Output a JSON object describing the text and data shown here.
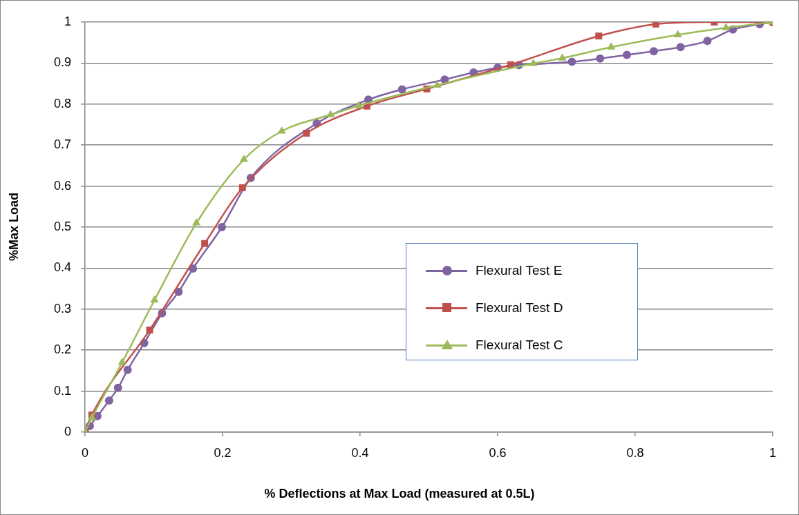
{
  "chart_data": {
    "type": "line",
    "xlabel": "% Deflections at Max Load (measured at 0.5L)",
    "ylabel": "%Max Load",
    "xlim": [
      0,
      1
    ],
    "xticks": [
      0,
      0.2,
      0.4,
      0.6,
      0.8,
      1
    ],
    "ylim": [
      0,
      1
    ],
    "yticks": [
      0,
      0.1,
      0.2,
      0.3,
      0.4,
      0.5,
      0.6,
      0.7,
      0.8,
      0.9,
      1
    ],
    "grid": "y",
    "legend": "right",
    "series": [
      {
        "name": "Flexural Test E",
        "color": "#8064a2",
        "marker": "circle",
        "x": [
          0,
          0.007,
          0.018,
          0.035,
          0.048,
          0.062,
          0.086,
          0.112,
          0.136,
          0.157,
          0.199,
          0.241,
          0.337,
          0.412,
          0.461,
          0.523,
          0.565,
          0.6,
          0.631,
          0.708,
          0.749,
          0.788,
          0.827,
          0.866,
          0.905,
          0.942,
          0.981,
          1
        ],
        "values": [
          0,
          0.015,
          0.039,
          0.077,
          0.108,
          0.152,
          0.217,
          0.29,
          0.342,
          0.399,
          0.5,
          0.62,
          0.753,
          0.811,
          0.836,
          0.86,
          0.877,
          0.889,
          0.895,
          0.903,
          0.911,
          0.92,
          0.929,
          0.939,
          0.954,
          0.982,
          0.995,
          1
        ]
      },
      {
        "name": "Flexural Test D",
        "color": "#c0504d",
        "marker": "square",
        "x": [
          0,
          0.01,
          0.094,
          0.174,
          0.229,
          0.322,
          0.41,
          0.497,
          0.619,
          0.747,
          0.83,
          0.915,
          1
        ],
        "values": [
          0,
          0.042,
          0.249,
          0.46,
          0.596,
          0.729,
          0.795,
          0.837,
          0.896,
          0.966,
          0.995,
          1,
          1
        ]
      },
      {
        "name": "Flexural Test C",
        "color": "#9bbb59",
        "marker": "triangle",
        "x": [
          0,
          0.01,
          0.054,
          0.101,
          0.162,
          0.231,
          0.286,
          0.357,
          0.398,
          0.512,
          0.652,
          0.694,
          0.765,
          0.862,
          0.932,
          1
        ],
        "values": [
          0,
          0.035,
          0.17,
          0.322,
          0.51,
          0.665,
          0.734,
          0.774,
          0.796,
          0.846,
          0.899,
          0.912,
          0.939,
          0.969,
          0.986,
          1
        ]
      }
    ]
  }
}
